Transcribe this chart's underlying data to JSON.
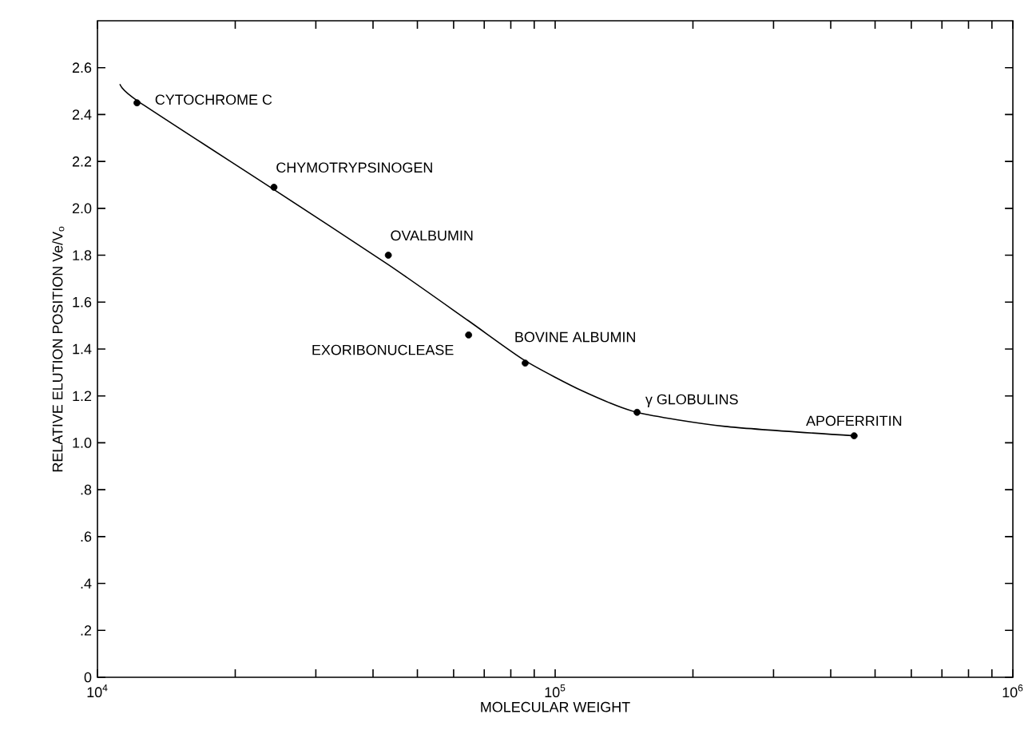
{
  "chart_data": {
    "type": "scatter",
    "xlabel": "MOLECULAR WEIGHT",
    "ylabel": "RELATIVE ELUTION POSITION Ve/V$_{o}$",
    "log": "x",
    "grid": false,
    "xlim": [
      10000,
      1000000
    ],
    "ylim": [
      0,
      2.8
    ],
    "xticks": [
      {
        "value": 10000,
        "label": "10$^{4}$"
      },
      {
        "value": 20000,
        "label": null
      },
      {
        "value": 30000,
        "label": null
      },
      {
        "value": 40000,
        "label": null
      },
      {
        "value": 50000,
        "label": null
      },
      {
        "value": 60000,
        "label": null
      },
      {
        "value": 70000,
        "label": null
      },
      {
        "value": 80000,
        "label": null
      },
      {
        "value": 90000,
        "label": null
      },
      {
        "value": 100000,
        "label": "10$^{5}$"
      },
      {
        "value": 200000,
        "label": null
      },
      {
        "value": 300000,
        "label": null
      },
      {
        "value": 400000,
        "label": null
      },
      {
        "value": 500000,
        "label": null
      },
      {
        "value": 600000,
        "label": null
      },
      {
        "value": 700000,
        "label": null
      },
      {
        "value": 800000,
        "label": null
      },
      {
        "value": 900000,
        "label": null
      },
      {
        "value": 1000000,
        "label": "10$^{6}$"
      }
    ],
    "yticks": [
      0,
      {
        "value": 0.2,
        "label": ".2"
      },
      {
        "value": 0.4,
        "label": ".4"
      },
      {
        "value": 0.6,
        "label": ".6"
      },
      {
        "value": 0.8,
        "label": ".8"
      },
      {
        "value": 1.0,
        "label": "1.0"
      },
      1.2,
      1.4,
      1.6,
      1.8,
      {
        "value": 2.0,
        "label": "2.0"
      },
      2.2,
      2.4,
      2.6
    ],
    "series": [
      {
        "color": "#000000",
        "marker": "circle",
        "x": [
          12200,
          24300,
          43200,
          64700,
          86000,
          151000,
          450000
        ],
        "values": [
          2.45,
          2.09,
          1.8,
          1.46,
          1.34,
          1.13,
          1.03
        ]
      },
      {
        "type": "line",
        "color": "#000000",
        "marker": "none",
        "line_style": "solid",
        "x": [
          11200,
          12200,
          24300,
          43200,
          64700,
          86000,
          115000,
          151000,
          235000,
          450000
        ],
        "values": [
          2.53,
          2.46,
          2.08,
          1.76,
          1.52,
          1.35,
          1.22,
          1.13,
          1.07,
          1.03
        ]
      }
    ],
    "annotations": [
      {
        "text": "CYTOCHROME C",
        "x": 12200,
        "y": 2.45
      },
      {
        "text": "CHYMOTRYPSINOGEN",
        "x": 24300,
        "y": 2.09
      },
      {
        "text": "OVALBUMIN",
        "x": 43200,
        "y": 1.8
      },
      {
        "text": "EXORIBONUCLEASE",
        "x": 64700,
        "y": 1.46
      },
      {
        "text": "BOVINE ALBUMIN",
        "x": 86000,
        "y": 1.34
      },
      {
        "text": "γ GLOBULINS",
        "x": 151000,
        "y": 1.13
      },
      {
        "text": "APOFERRITIN",
        "x": 450000,
        "y": 1.03
      }
    ]
  }
}
